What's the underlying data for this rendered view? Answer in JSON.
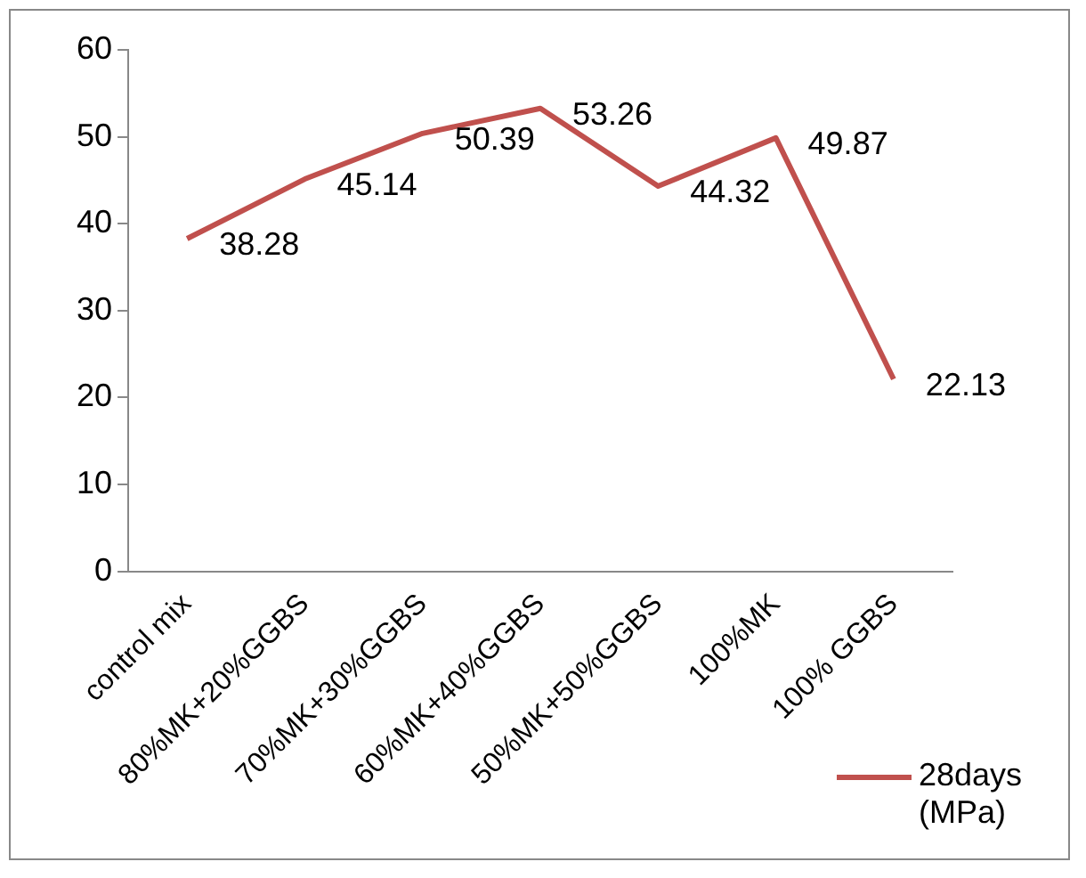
{
  "chart_data": {
    "type": "line",
    "categories": [
      "control mix",
      "80%MK+20%GGBS",
      "70%MK+30%GGBS",
      "60%MK+40%GGBS",
      "50%MK+50%GGBS",
      "100%MK",
      "100% GGBS"
    ],
    "series": [
      {
        "name": "28days(MPa)",
        "color": "#c0504d",
        "values": [
          38.28,
          45.14,
          50.39,
          53.26,
          44.32,
          49.87,
          22.13
        ]
      }
    ],
    "ylim": [
      0,
      60
    ],
    "yticks": [
      0,
      10,
      20,
      30,
      40,
      50,
      60
    ],
    "grid": false,
    "legend": "bottom right",
    "data_labels": true,
    "marker": "none",
    "line_style": "solid"
  }
}
